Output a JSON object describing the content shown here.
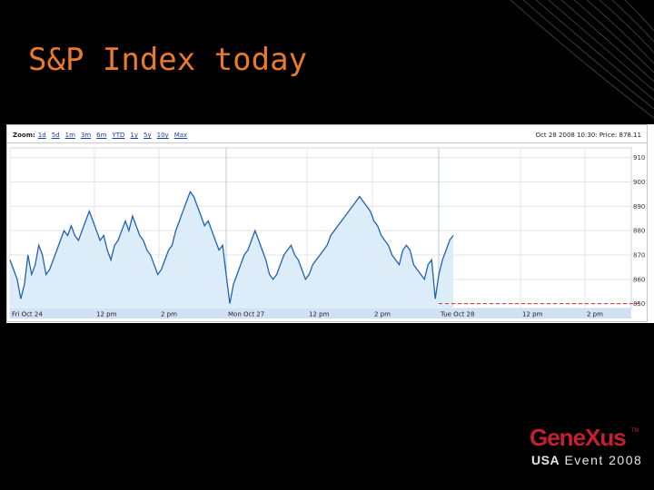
{
  "slide": {
    "title": "S&P Index today"
  },
  "chart_widget": {
    "zoom_label": "Zoom:",
    "zoom_options": [
      "1d",
      "5d",
      "1m",
      "3m",
      "6m",
      "YTD",
      "1y",
      "5y",
      "10y",
      "Max"
    ],
    "price_info": "Oct 28  2008 10:30: Price: 878.11"
  },
  "chart_data": {
    "type": "area",
    "title": "",
    "xlabel": "",
    "ylabel": "",
    "x_tick_labels": [
      "Fri Oct 24",
      "12 pm",
      "2 pm",
      "Mon Oct 27",
      "12 pm",
      "2 pm",
      "Tue Oct 28",
      "12 pm",
      "2 pm"
    ],
    "y_tick_labels": [
      "910",
      "900",
      "890",
      "880",
      "870",
      "860",
      "850"
    ],
    "ylim": [
      848,
      914
    ],
    "baseline": 850,
    "series": [
      {
        "values": [
          868,
          864,
          860,
          852,
          858,
          870,
          862,
          866,
          874,
          870,
          862,
          864,
          868,
          872,
          876,
          880,
          878,
          882,
          878,
          876,
          880,
          884,
          888,
          884,
          880,
          876,
          878,
          872,
          868,
          874,
          876,
          880,
          884,
          880,
          886,
          882,
          878,
          876,
          872,
          870,
          866,
          862,
          864,
          868,
          872,
          874,
          880,
          884,
          888,
          892,
          896,
          894,
          890,
          886,
          882,
          884,
          880,
          876,
          872,
          874,
          862,
          850,
          858,
          862,
          866,
          870,
          872,
          876,
          880,
          876,
          872,
          868,
          862,
          860,
          862,
          866,
          870,
          872,
          874,
          870,
          868,
          864,
          860,
          862,
          866,
          868,
          870,
          872,
          874,
          878,
          880,
          882,
          884,
          886,
          888,
          890,
          892,
          894,
          892,
          890,
          888,
          884,
          882,
          878,
          876,
          874,
          870,
          868,
          866,
          872,
          874,
          872,
          866,
          864,
          862,
          860,
          866,
          868,
          852,
          862,
          868,
          872,
          876,
          878
        ]
      }
    ],
    "grid": true,
    "legend": "none"
  },
  "branding": {
    "logo_main": "GeneXus",
    "logo_tm": "TM",
    "logo_event_bold": "USA",
    "logo_event_rest": " Event 2008"
  },
  "colors": {
    "title": "#e87a2c",
    "line": "#1f62b5",
    "area": "#dcecf8",
    "logo_red": "#c42032"
  }
}
